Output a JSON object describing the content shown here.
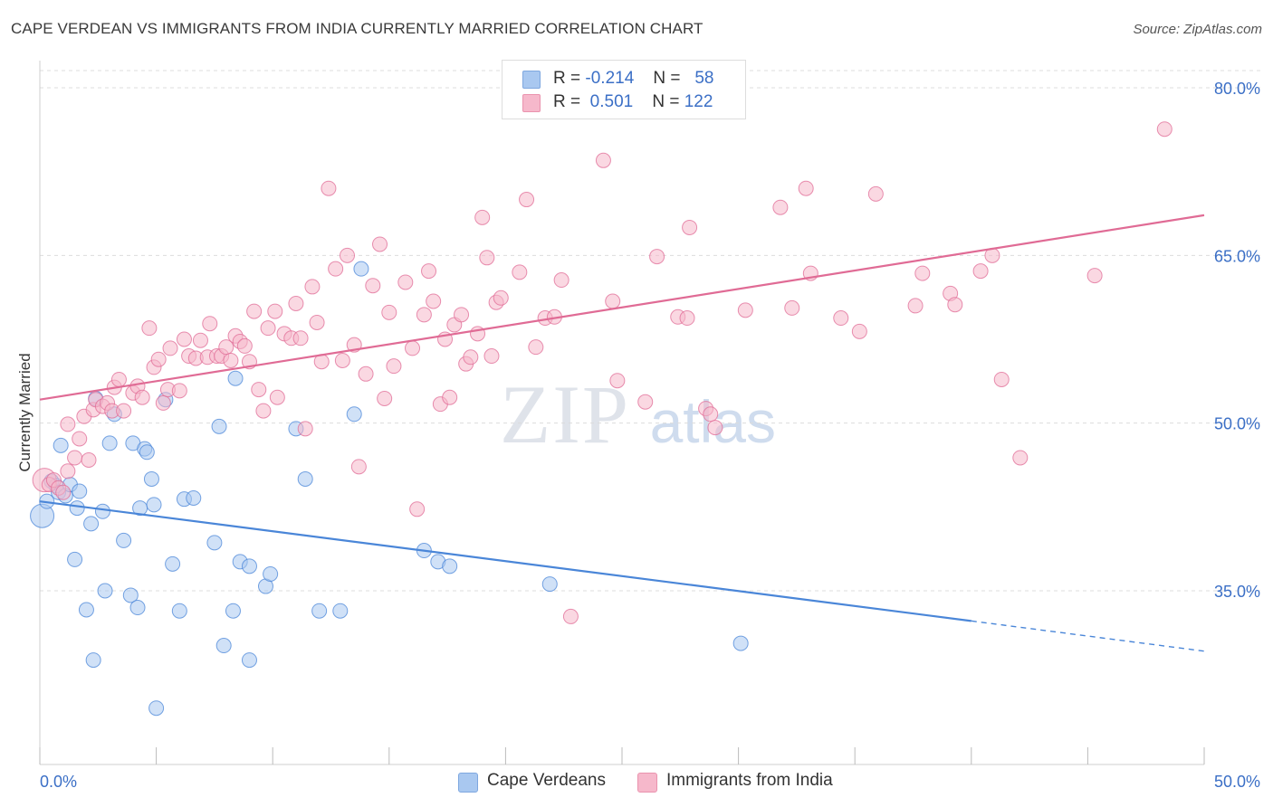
{
  "title": "CAPE VERDEAN VS IMMIGRANTS FROM INDIA CURRENTLY MARRIED CORRELATION CHART",
  "source": "Source: ZipAtlas.com",
  "watermark": {
    "zip": "ZIP",
    "atlas": "atlas"
  },
  "legend_top": [
    {
      "r_label": "R =",
      "r_value": "-0.214",
      "n_label": "N =",
      "n_value": "58",
      "color": "#a9c8f0"
    },
    {
      "r_label": "R =",
      "r_value": "0.501",
      "n_label": "N =",
      "n_value": "122",
      "color": "#f6b8cb"
    }
  ],
  "legend_bottom": [
    {
      "label": "Cape Verdeans",
      "color": "#a9c8f0"
    },
    {
      "label": "Immigrants from India",
      "color": "#f6b8cb"
    }
  ],
  "chart_data": {
    "type": "scatter",
    "title": "CAPE VERDEAN VS IMMIGRANTS FROM INDIA CURRENTLY MARRIED CORRELATION CHART",
    "xlabel": "",
    "ylabel": "Currently Married",
    "xlim": [
      0,
      50
    ],
    "ylim": [
      20,
      82
    ],
    "x_tick_labels": [
      "0.0%",
      "50.0%"
    ],
    "y_ticks": [
      35,
      50,
      65,
      80
    ],
    "y_tick_labels": [
      "35.0%",
      "50.0%",
      "65.0%",
      "80.0%"
    ],
    "grid": true,
    "legend_position": "top-center",
    "series": [
      {
        "name": "Cape Verdeans",
        "color": "#4a86d8",
        "fill": "#a9c8f0",
        "trend": {
          "x": [
            0,
            40
          ],
          "y": [
            43.0,
            32.3
          ],
          "dashed_to": [
            50,
            29.6
          ]
        },
        "points": [
          [
            0.1,
            41.7
          ],
          [
            0.3,
            43.0
          ],
          [
            0.5,
            44.8
          ],
          [
            0.7,
            44.4
          ],
          [
            0.8,
            43.8
          ],
          [
            0.9,
            48.0
          ],
          [
            1.1,
            43.5
          ],
          [
            1.3,
            44.5
          ],
          [
            1.5,
            37.8
          ],
          [
            1.6,
            42.4
          ],
          [
            1.7,
            43.9
          ],
          [
            2.0,
            33.3
          ],
          [
            2.2,
            41.0
          ],
          [
            2.3,
            28.8
          ],
          [
            2.4,
            52.2
          ],
          [
            2.7,
            42.1
          ],
          [
            2.8,
            35.0
          ],
          [
            3.0,
            48.2
          ],
          [
            3.2,
            50.8
          ],
          [
            3.6,
            39.5
          ],
          [
            3.9,
            34.6
          ],
          [
            4.0,
            48.2
          ],
          [
            4.2,
            33.5
          ],
          [
            4.3,
            42.4
          ],
          [
            4.5,
            47.7
          ],
          [
            4.6,
            47.4
          ],
          [
            4.8,
            45.0
          ],
          [
            4.9,
            42.7
          ],
          [
            5.0,
            24.5
          ],
          [
            5.4,
            52.1
          ],
          [
            5.7,
            37.4
          ],
          [
            6.0,
            33.2
          ],
          [
            6.2,
            43.2
          ],
          [
            6.6,
            43.3
          ],
          [
            7.5,
            39.3
          ],
          [
            7.7,
            49.7
          ],
          [
            7.9,
            30.1
          ],
          [
            8.3,
            33.2
          ],
          [
            8.4,
            54.0
          ],
          [
            8.6,
            37.6
          ],
          [
            9.0,
            28.8
          ],
          [
            9.0,
            37.2
          ],
          [
            9.7,
            35.4
          ],
          [
            9.9,
            36.5
          ],
          [
            11.0,
            49.5
          ],
          [
            11.4,
            45.0
          ],
          [
            12.0,
            33.2
          ],
          [
            12.9,
            33.2
          ],
          [
            13.5,
            50.8
          ],
          [
            13.8,
            63.8
          ],
          [
            16.5,
            38.6
          ],
          [
            17.1,
            37.6
          ],
          [
            17.6,
            37.2
          ],
          [
            21.9,
            35.6
          ],
          [
            30.1,
            30.3
          ]
        ]
      },
      {
        "name": "Immigrants from India",
        "color": "#e06b95",
        "fill": "#f6b8cb",
        "trend": {
          "x": [
            0,
            50
          ],
          "y": [
            52.1,
            68.6
          ]
        },
        "points": [
          [
            0.2,
            44.9
          ],
          [
            0.4,
            44.5
          ],
          [
            0.6,
            44.9
          ],
          [
            0.8,
            44.2
          ],
          [
            1.0,
            43.8
          ],
          [
            1.2,
            45.7
          ],
          [
            1.2,
            49.9
          ],
          [
            1.5,
            46.9
          ],
          [
            1.7,
            48.6
          ],
          [
            1.9,
            50.6
          ],
          [
            2.1,
            46.7
          ],
          [
            2.3,
            51.2
          ],
          [
            2.4,
            52.1
          ],
          [
            2.7,
            51.5
          ],
          [
            2.9,
            51.8
          ],
          [
            3.1,
            51.1
          ],
          [
            3.2,
            53.2
          ],
          [
            3.4,
            53.9
          ],
          [
            3.6,
            51.1
          ],
          [
            4.0,
            52.7
          ],
          [
            4.2,
            53.3
          ],
          [
            4.4,
            52.3
          ],
          [
            4.7,
            58.5
          ],
          [
            4.9,
            55.0
          ],
          [
            5.1,
            55.7
          ],
          [
            5.3,
            51.8
          ],
          [
            5.5,
            53.0
          ],
          [
            5.6,
            56.7
          ],
          [
            6.0,
            52.9
          ],
          [
            6.2,
            57.5
          ],
          [
            6.4,
            56.0
          ],
          [
            6.7,
            55.8
          ],
          [
            6.9,
            57.4
          ],
          [
            7.2,
            55.9
          ],
          [
            7.3,
            58.9
          ],
          [
            7.6,
            56.0
          ],
          [
            7.8,
            56.0
          ],
          [
            8.0,
            56.8
          ],
          [
            8.2,
            55.6
          ],
          [
            8.4,
            57.8
          ],
          [
            8.6,
            57.3
          ],
          [
            8.8,
            56.9
          ],
          [
            9.0,
            55.5
          ],
          [
            9.2,
            60.0
          ],
          [
            9.4,
            53.0
          ],
          [
            9.6,
            51.1
          ],
          [
            9.8,
            58.5
          ],
          [
            10.1,
            60.0
          ],
          [
            10.2,
            52.3
          ],
          [
            10.5,
            58.0
          ],
          [
            10.8,
            57.6
          ],
          [
            11.0,
            60.7
          ],
          [
            11.2,
            57.6
          ],
          [
            11.4,
            49.5
          ],
          [
            11.7,
            62.2
          ],
          [
            11.9,
            59.0
          ],
          [
            12.1,
            55.5
          ],
          [
            12.4,
            71.0
          ],
          [
            12.7,
            63.8
          ],
          [
            13.0,
            55.6
          ],
          [
            13.2,
            65.0
          ],
          [
            13.5,
            57.0
          ],
          [
            13.7,
            46.1
          ],
          [
            14.0,
            54.4
          ],
          [
            14.3,
            62.3
          ],
          [
            14.6,
            66.0
          ],
          [
            14.8,
            52.2
          ],
          [
            15.0,
            59.9
          ],
          [
            15.2,
            55.1
          ],
          [
            15.7,
            62.6
          ],
          [
            16.0,
            56.7
          ],
          [
            16.2,
            42.3
          ],
          [
            16.5,
            59.7
          ],
          [
            16.7,
            63.6
          ],
          [
            16.9,
            60.9
          ],
          [
            17.2,
            51.7
          ],
          [
            17.4,
            57.5
          ],
          [
            17.6,
            52.3
          ],
          [
            17.8,
            58.8
          ],
          [
            18.1,
            59.7
          ],
          [
            18.3,
            55.3
          ],
          [
            18.5,
            55.9
          ],
          [
            18.8,
            58.0
          ],
          [
            19.0,
            68.4
          ],
          [
            19.2,
            64.8
          ],
          [
            19.4,
            56.0
          ],
          [
            19.6,
            60.8
          ],
          [
            19.8,
            61.2
          ],
          [
            20.6,
            63.5
          ],
          [
            20.9,
            70.0
          ],
          [
            21.3,
            56.8
          ],
          [
            21.7,
            59.4
          ],
          [
            22.1,
            59.5
          ],
          [
            22.4,
            62.8
          ],
          [
            22.8,
            32.7
          ],
          [
            24.2,
            73.5
          ],
          [
            24.6,
            60.9
          ],
          [
            24.8,
            53.8
          ],
          [
            26.0,
            51.9
          ],
          [
            26.5,
            64.9
          ],
          [
            27.4,
            59.5
          ],
          [
            27.8,
            59.4
          ],
          [
            27.9,
            67.5
          ],
          [
            28.6,
            51.3
          ],
          [
            28.8,
            50.8
          ],
          [
            29.0,
            49.6
          ],
          [
            30.3,
            60.1
          ],
          [
            31.8,
            69.3
          ],
          [
            32.3,
            60.3
          ],
          [
            32.9,
            71.0
          ],
          [
            33.1,
            63.4
          ],
          [
            34.4,
            59.4
          ],
          [
            35.2,
            58.2
          ],
          [
            35.9,
            70.5
          ],
          [
            37.6,
            60.5
          ],
          [
            37.9,
            63.4
          ],
          [
            39.1,
            61.6
          ],
          [
            39.3,
            60.6
          ],
          [
            40.4,
            63.6
          ],
          [
            40.9,
            65.0
          ],
          [
            41.3,
            53.9
          ],
          [
            42.1,
            46.9
          ],
          [
            45.3,
            63.2
          ],
          [
            48.3,
            76.3
          ]
        ]
      }
    ]
  }
}
